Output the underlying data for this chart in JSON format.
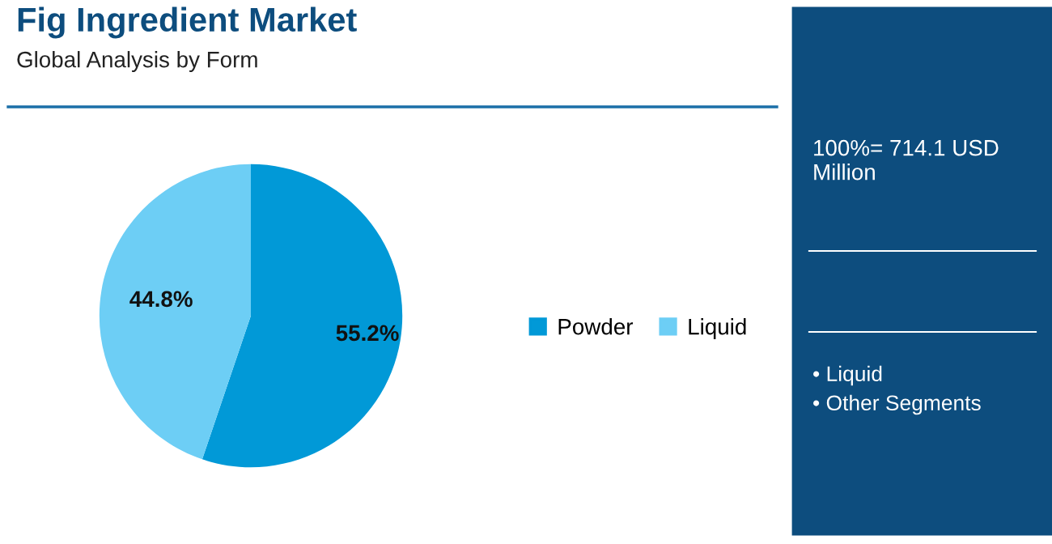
{
  "chart_data": {
    "type": "pie",
    "title": "Fig Ingredient Market",
    "subtitle": "Global Analysis by Form",
    "categories": [
      "Powder",
      "Liquid"
    ],
    "values": [
      55.2,
      44.8
    ],
    "colors": [
      "#0199d7",
      "#6dcef5"
    ],
    "value_labels": [
      "55.2%",
      "44.8%"
    ],
    "legend": "right",
    "annotations": [
      "100%= 714.1 USD Million",
      "• Liquid",
      "• Other Segments"
    ]
  }
}
